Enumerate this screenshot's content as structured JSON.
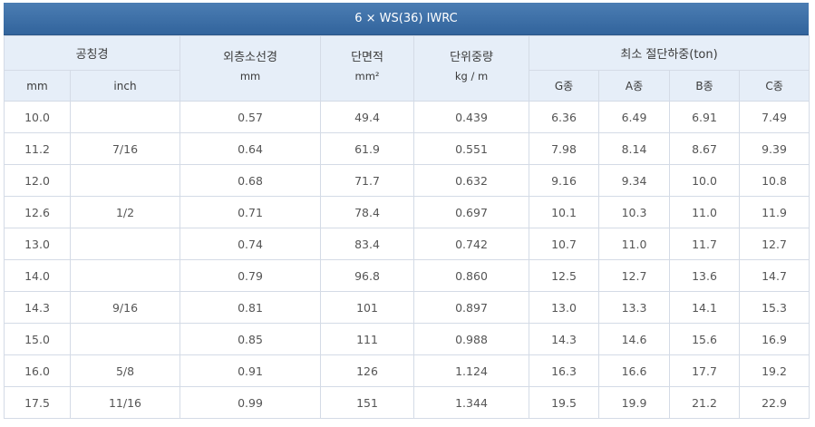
{
  "title": "6 × WS(36) IWRC",
  "headers": {
    "nominal_diameter": "공칭경",
    "outer_wire_diameter": "외층소선경",
    "outer_wire_unit": "mm",
    "cross_section": "단면적",
    "cross_section_unit": "mm²",
    "unit_weight": "단위중량",
    "unit_weight_unit": "kg / m",
    "min_breaking_load": "최소 절단하중(ton)",
    "sub": [
      "mm",
      "inch",
      "G종",
      "A종",
      "B종",
      "C종"
    ]
  },
  "rows": [
    [
      "10.0",
      "",
      "0.57",
      "49.4",
      "0.439",
      "6.36",
      "6.49",
      "6.91",
      "7.49"
    ],
    [
      "11.2",
      "7/16",
      "0.64",
      "61.9",
      "0.551",
      "7.98",
      "8.14",
      "8.67",
      "9.39"
    ],
    [
      "12.0",
      "",
      "0.68",
      "71.7",
      "0.632",
      "9.16",
      "9.34",
      "10.0",
      "10.8"
    ],
    [
      "12.6",
      "1/2",
      "0.71",
      "78.4",
      "0.697",
      "10.1",
      "10.3",
      "11.0",
      "11.9"
    ],
    [
      "13.0",
      "",
      "0.74",
      "83.4",
      "0.742",
      "10.7",
      "11.0",
      "11.7",
      "12.7"
    ],
    [
      "14.0",
      "",
      "0.79",
      "96.8",
      "0.860",
      "12.5",
      "12.7",
      "13.6",
      "14.7"
    ],
    [
      "14.3",
      "9/16",
      "0.81",
      "101",
      "0.897",
      "13.0",
      "13.3",
      "14.1",
      "15.3"
    ],
    [
      "15.0",
      "",
      "0.85",
      "111",
      "0.988",
      "14.3",
      "14.6",
      "15.6",
      "16.9"
    ],
    [
      "16.0",
      "5/8",
      "0.91",
      "126",
      "1.124",
      "16.3",
      "16.6",
      "17.7",
      "19.2"
    ],
    [
      "17.5",
      "11/16",
      "0.99",
      "151",
      "1.344",
      "19.5",
      "19.9",
      "21.2",
      "22.9"
    ]
  ]
}
